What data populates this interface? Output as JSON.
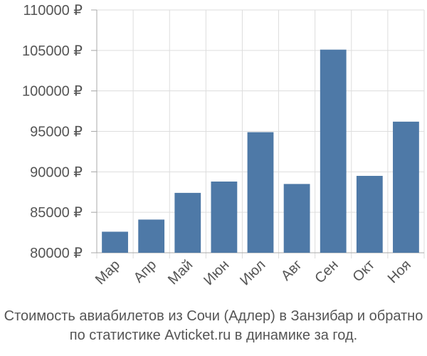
{
  "chart_data": {
    "type": "bar",
    "title": "",
    "xlabel": "",
    "ylabel": "",
    "categories": [
      "Мар",
      "Апр",
      "Май",
      "Июн",
      "Июл",
      "Авг",
      "Сен",
      "Окт",
      "Ноя"
    ],
    "values": [
      82600,
      84100,
      87400,
      88800,
      94900,
      88500,
      105100,
      89500,
      96200
    ],
    "ylim": [
      80000,
      110000
    ],
    "yticks": [
      80000,
      85000,
      90000,
      95000,
      100000,
      105000,
      110000
    ],
    "ytick_labels": [
      "80000 ₽",
      "85000 ₽",
      "90000 ₽",
      "95000 ₽",
      "100000 ₽",
      "105000 ₽",
      "110000 ₽"
    ],
    "bar_color": "#4e79a7",
    "grid": true,
    "legend": "none"
  },
  "caption": {
    "line1": "Стоимость авиабилетов из Сочи (Адлер) в Занзибар и обратно",
    "line2": "по статистике Avticket.ru в динамике за год."
  }
}
